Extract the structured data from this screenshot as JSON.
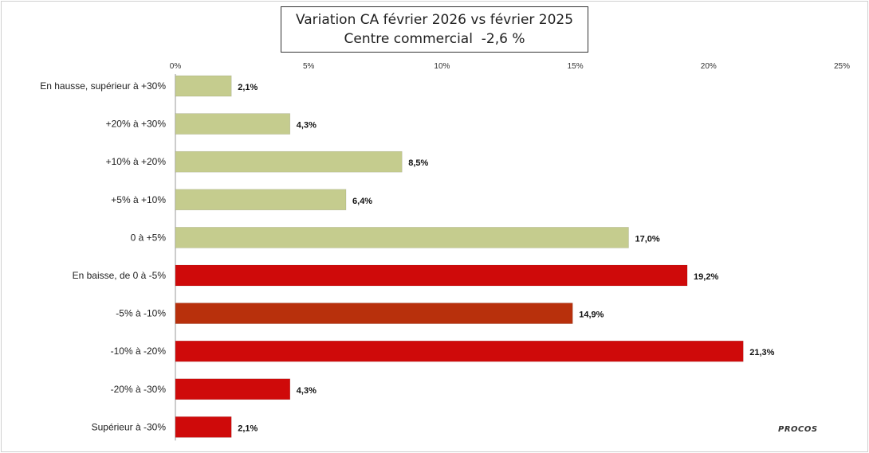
{
  "chart_data": {
    "type": "bar",
    "orientation": "horizontal",
    "title": "Variation CA février 2026 vs février 2025",
    "subtitle": "Centre commercial  -2,6 %",
    "xlim": [
      0,
      25
    ],
    "x_ticks": [
      "0%",
      "5%",
      "10%",
      "15%",
      "20%",
      "25%"
    ],
    "x_tick_values": [
      0,
      5,
      10,
      15,
      20,
      25
    ],
    "legend": "none",
    "grid": false,
    "categories": [
      "En hausse, supérieur à +30%",
      "+20% à +30%",
      "+10% à +20%",
      "+5% à +10%",
      "0 à +5%",
      "En baisse, de 0 à -5%",
      "-5% à -10%",
      "-10% à -20%",
      "-20% à -30%",
      "Supérieur à -30%"
    ],
    "values": [
      2.1,
      4.3,
      8.5,
      6.4,
      17.0,
      19.2,
      14.9,
      21.3,
      4.3,
      2.1
    ],
    "value_labels": [
      "2,1%",
      "4,3%",
      "8,5%",
      "6,4%",
      "17,0%",
      "19,2%",
      "14,9%",
      "21,3%",
      "4,3%",
      "2,1%"
    ],
    "colors": [
      "#c5cc8e",
      "#c5cc8e",
      "#c5cc8e",
      "#c5cc8e",
      "#c5cc8e",
      "#cf0a0a",
      "#b8300c",
      "#cf0a0a",
      "#cf0a0a",
      "#cf0a0a"
    ]
  },
  "watermark": "PROCOS"
}
